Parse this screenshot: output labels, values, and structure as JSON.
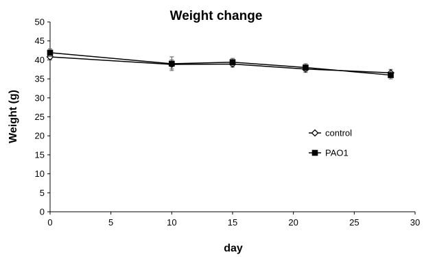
{
  "chart_data": {
    "type": "line",
    "title": "Weight change",
    "xlabel": "day",
    "ylabel": "Weight (g)",
    "xlim": [
      0,
      30
    ],
    "ylim": [
      0,
      50
    ],
    "xticks": [
      "0",
      "5",
      "10",
      "15",
      "20",
      "25",
      "30"
    ],
    "yticks": [
      "0",
      "5",
      "10",
      "15",
      "20",
      "25",
      "30",
      "35",
      "40",
      "45",
      "50"
    ],
    "grid": false,
    "legend_position": "right",
    "series": [
      {
        "name": "control",
        "marker": "open-diamond",
        "x": [
          0,
          10,
          15,
          21,
          28
        ],
        "y": [
          40.8,
          38.8,
          38.9,
          37.6,
          36.6
        ],
        "error": [
          0.8,
          1.2,
          0.8,
          0.9,
          0.9
        ]
      },
      {
        "name": "PAO1",
        "marker": "filled-square",
        "x": [
          0,
          10,
          15,
          21,
          28
        ],
        "y": [
          41.9,
          39.0,
          39.4,
          38.0,
          36.0
        ],
        "error": [
          1.0,
          1.8,
          1.0,
          1.0,
          1.0
        ]
      }
    ]
  }
}
